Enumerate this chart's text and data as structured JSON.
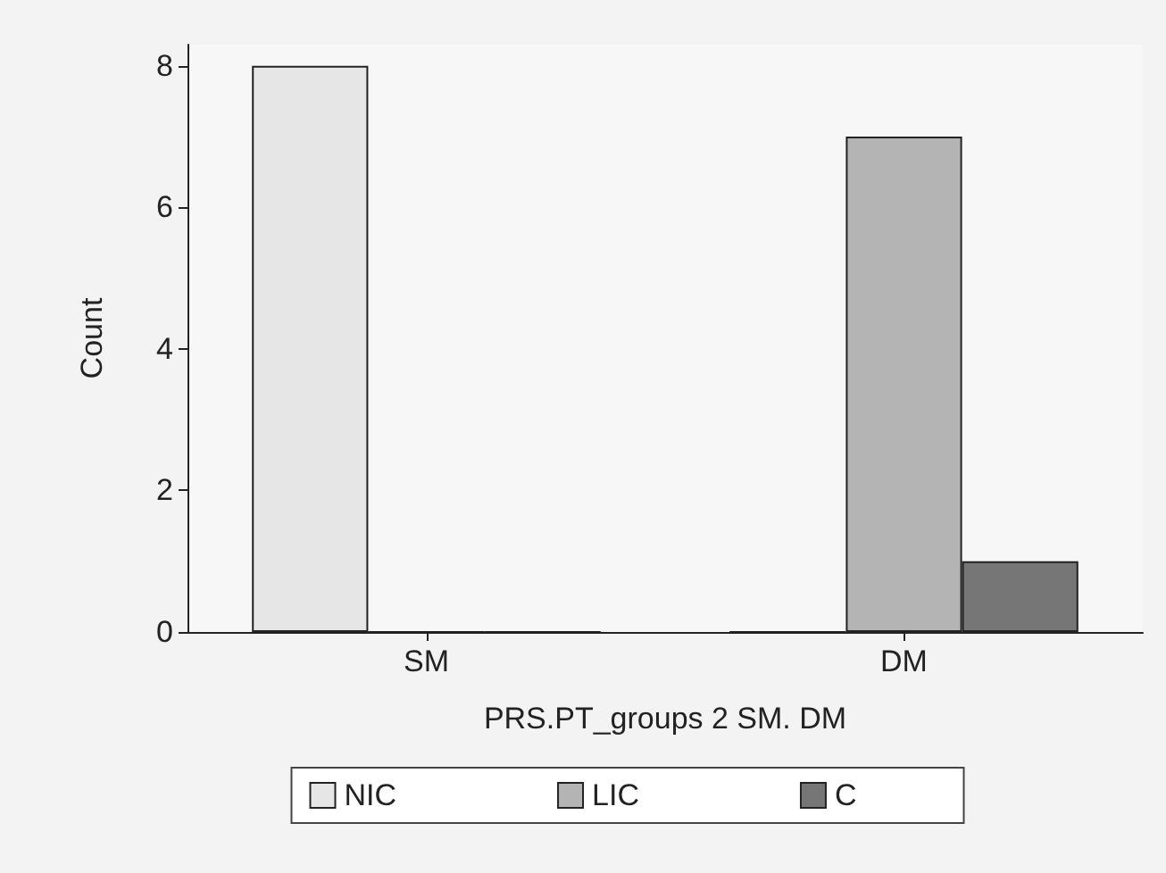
{
  "chart_data": {
    "type": "bar",
    "xlabel": "PRS.PT_groups 2 SM. DM",
    "ylabel": "Count",
    "categories": [
      "SM",
      "DM"
    ],
    "series": [
      {
        "name": "NIC",
        "color": "#e6e6e6",
        "values": [
          8,
          0
        ]
      },
      {
        "name": "LIC",
        "color": "#b4b4b4",
        "values": [
          0,
          7
        ]
      },
      {
        "name": "C",
        "color": "#767676",
        "values": [
          0,
          1
        ]
      }
    ],
    "ylim": [
      0,
      8.3
    ],
    "yticks": [
      0,
      2,
      4,
      6,
      8
    ],
    "grid": false,
    "legend": "bottom"
  }
}
